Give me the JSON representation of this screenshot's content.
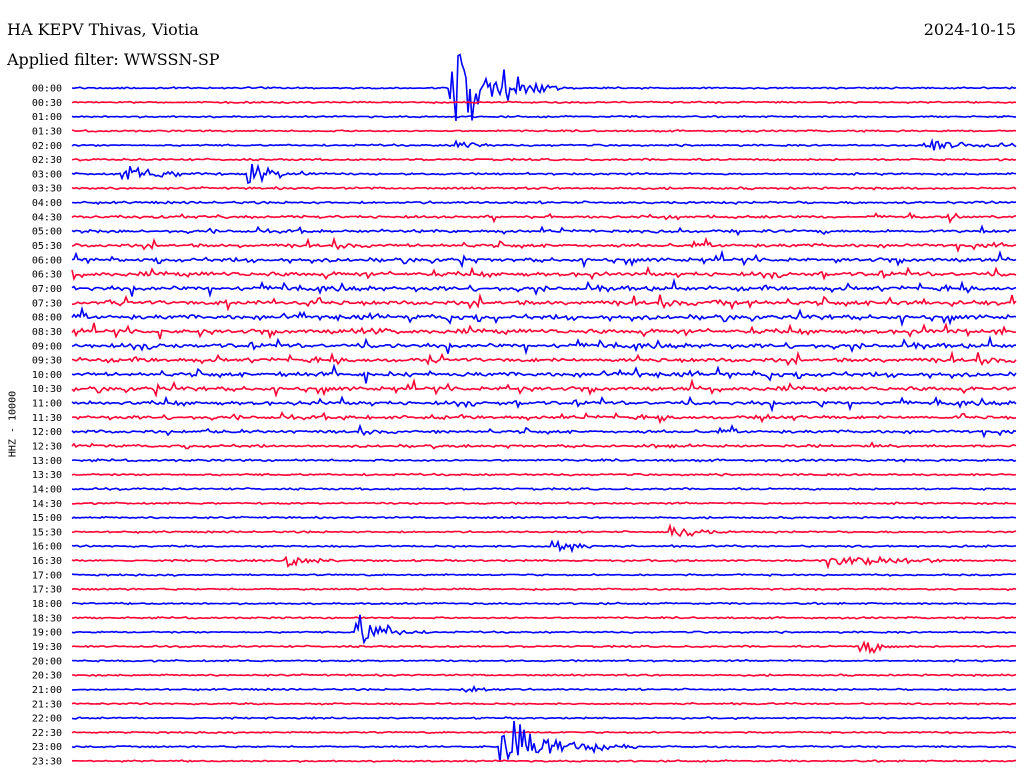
{
  "header": {
    "station": "HA KEPV Thivas, Viotia",
    "filter": "Applied filter: WWSSN-SP",
    "date": "2024-10-15"
  },
  "channel_label": "HHZ - 10000",
  "chart_data": {
    "type": "line",
    "title": "HA KEPV Thivas, Viotia",
    "subtitle": "Applied filter: WWSSN-SP",
    "date": "2024-10-15",
    "ylabel": "HHZ - 10000",
    "row_labels": [
      "00:00",
      "00:30",
      "01:00",
      "01:30",
      "02:00",
      "02:30",
      "03:00",
      "03:30",
      "04:00",
      "04:30",
      "05:00",
      "05:30",
      "06:00",
      "06:30",
      "07:00",
      "07:30",
      "08:00",
      "08:30",
      "09:00",
      "09:30",
      "10:00",
      "10:30",
      "11:00",
      "11:30",
      "12:00",
      "12:30",
      "13:00",
      "13:30",
      "14:00",
      "14:30",
      "15:00",
      "15:30",
      "16:00",
      "16:30",
      "17:00",
      "17:30",
      "18:00",
      "18:30",
      "19:00",
      "19:30",
      "20:00",
      "20:30",
      "21:00",
      "21:30",
      "22:00",
      "22:30",
      "23:00",
      "23:30"
    ],
    "minutes_per_row": 30,
    "row_colors": [
      "#0000ff",
      "#ff0033"
    ],
    "activity": [
      0.4,
      0.4,
      0.4,
      0.5,
      0.6,
      0.7,
      0.8,
      1.0,
      1.2,
      1.4,
      1.8,
      2.2,
      2.6,
      3.0,
      3.2,
      3.4,
      3.3,
      3.2,
      3.2,
      3.1,
      3.0,
      2.8,
      2.6,
      2.3,
      1.9,
      1.4,
      1.0,
      0.8,
      0.7,
      0.6,
      0.6,
      0.6,
      0.6,
      0.6,
      0.5,
      0.5,
      0.5,
      0.5,
      0.5,
      0.5,
      0.5,
      0.5,
      0.5,
      0.4,
      0.4,
      0.4,
      0.4,
      0.4
    ],
    "events": [
      {
        "row": 0,
        "minute": 12.0,
        "amp": 90,
        "dur": 1.2
      },
      {
        "row": 4,
        "minute": 12.2,
        "amp": 12,
        "dur": 0.6
      },
      {
        "row": 4,
        "minute": 27.0,
        "amp": 10,
        "dur": 2.0
      },
      {
        "row": 6,
        "minute": 1.5,
        "amp": 14,
        "dur": 1.5
      },
      {
        "row": 6,
        "minute": 5.5,
        "amp": 22,
        "dur": 1.0
      },
      {
        "row": 32,
        "minute": 15.2,
        "amp": 12,
        "dur": 1.0
      },
      {
        "row": 31,
        "minute": 19.0,
        "amp": 16,
        "dur": 0.8
      },
      {
        "row": 33,
        "minute": 6.8,
        "amp": 14,
        "dur": 0.8
      },
      {
        "row": 33,
        "minute": 24.0,
        "amp": 10,
        "dur": 2.5
      },
      {
        "row": 38,
        "minute": 9.0,
        "amp": 34,
        "dur": 0.8
      },
      {
        "row": 39,
        "minute": 25.0,
        "amp": 18,
        "dur": 0.6
      },
      {
        "row": 42,
        "minute": 12.5,
        "amp": 8,
        "dur": 0.8
      },
      {
        "row": 46,
        "minute": 13.5,
        "amp": 50,
        "dur": 1.5
      }
    ]
  }
}
